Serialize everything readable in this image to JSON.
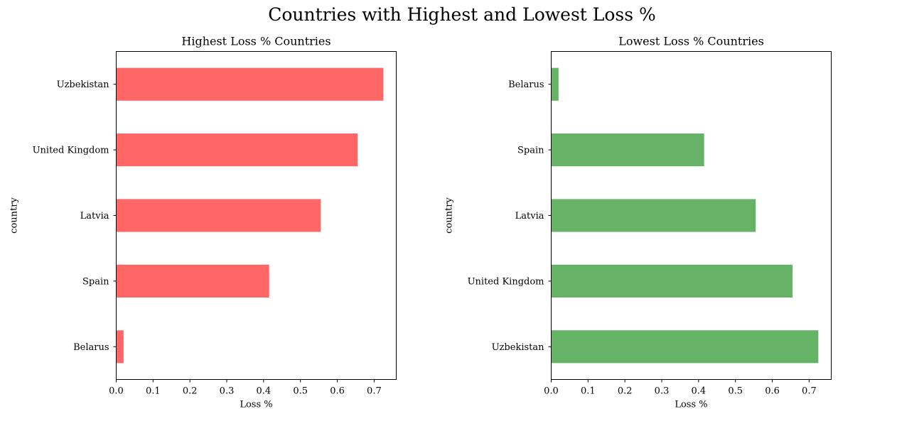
{
  "title": "Countries with Highest and Lowest Loss %",
  "chart_data": [
    {
      "type": "bar",
      "orientation": "horizontal",
      "title": "Highest Loss % Countries",
      "xlabel": "Loss %",
      "ylabel": "country",
      "categories": [
        "Belarus",
        "Spain",
        "Latvia",
        "United Kingdom",
        "Uzbekistan"
      ],
      "values": [
        0.02,
        0.415,
        0.555,
        0.655,
        0.725
      ],
      "xlim": [
        0,
        0.76
      ],
      "xticks": [
        "0.0",
        "0.1",
        "0.2",
        "0.3",
        "0.4",
        "0.5",
        "0.6",
        "0.7"
      ],
      "color": "#ff6666",
      "grid": false
    },
    {
      "type": "bar",
      "orientation": "horizontal",
      "title": "Lowest Loss % Countries",
      "xlabel": "Loss %",
      "ylabel": "country",
      "categories": [
        "Uzbekistan",
        "United Kingdom",
        "Latvia",
        "Spain",
        "Belarus"
      ],
      "values": [
        0.725,
        0.655,
        0.555,
        0.415,
        0.02
      ],
      "xlim": [
        0,
        0.76
      ],
      "xticks": [
        "0.0",
        "0.1",
        "0.2",
        "0.3",
        "0.4",
        "0.5",
        "0.6",
        "0.7"
      ],
      "color": "#66b266",
      "grid": false
    }
  ]
}
